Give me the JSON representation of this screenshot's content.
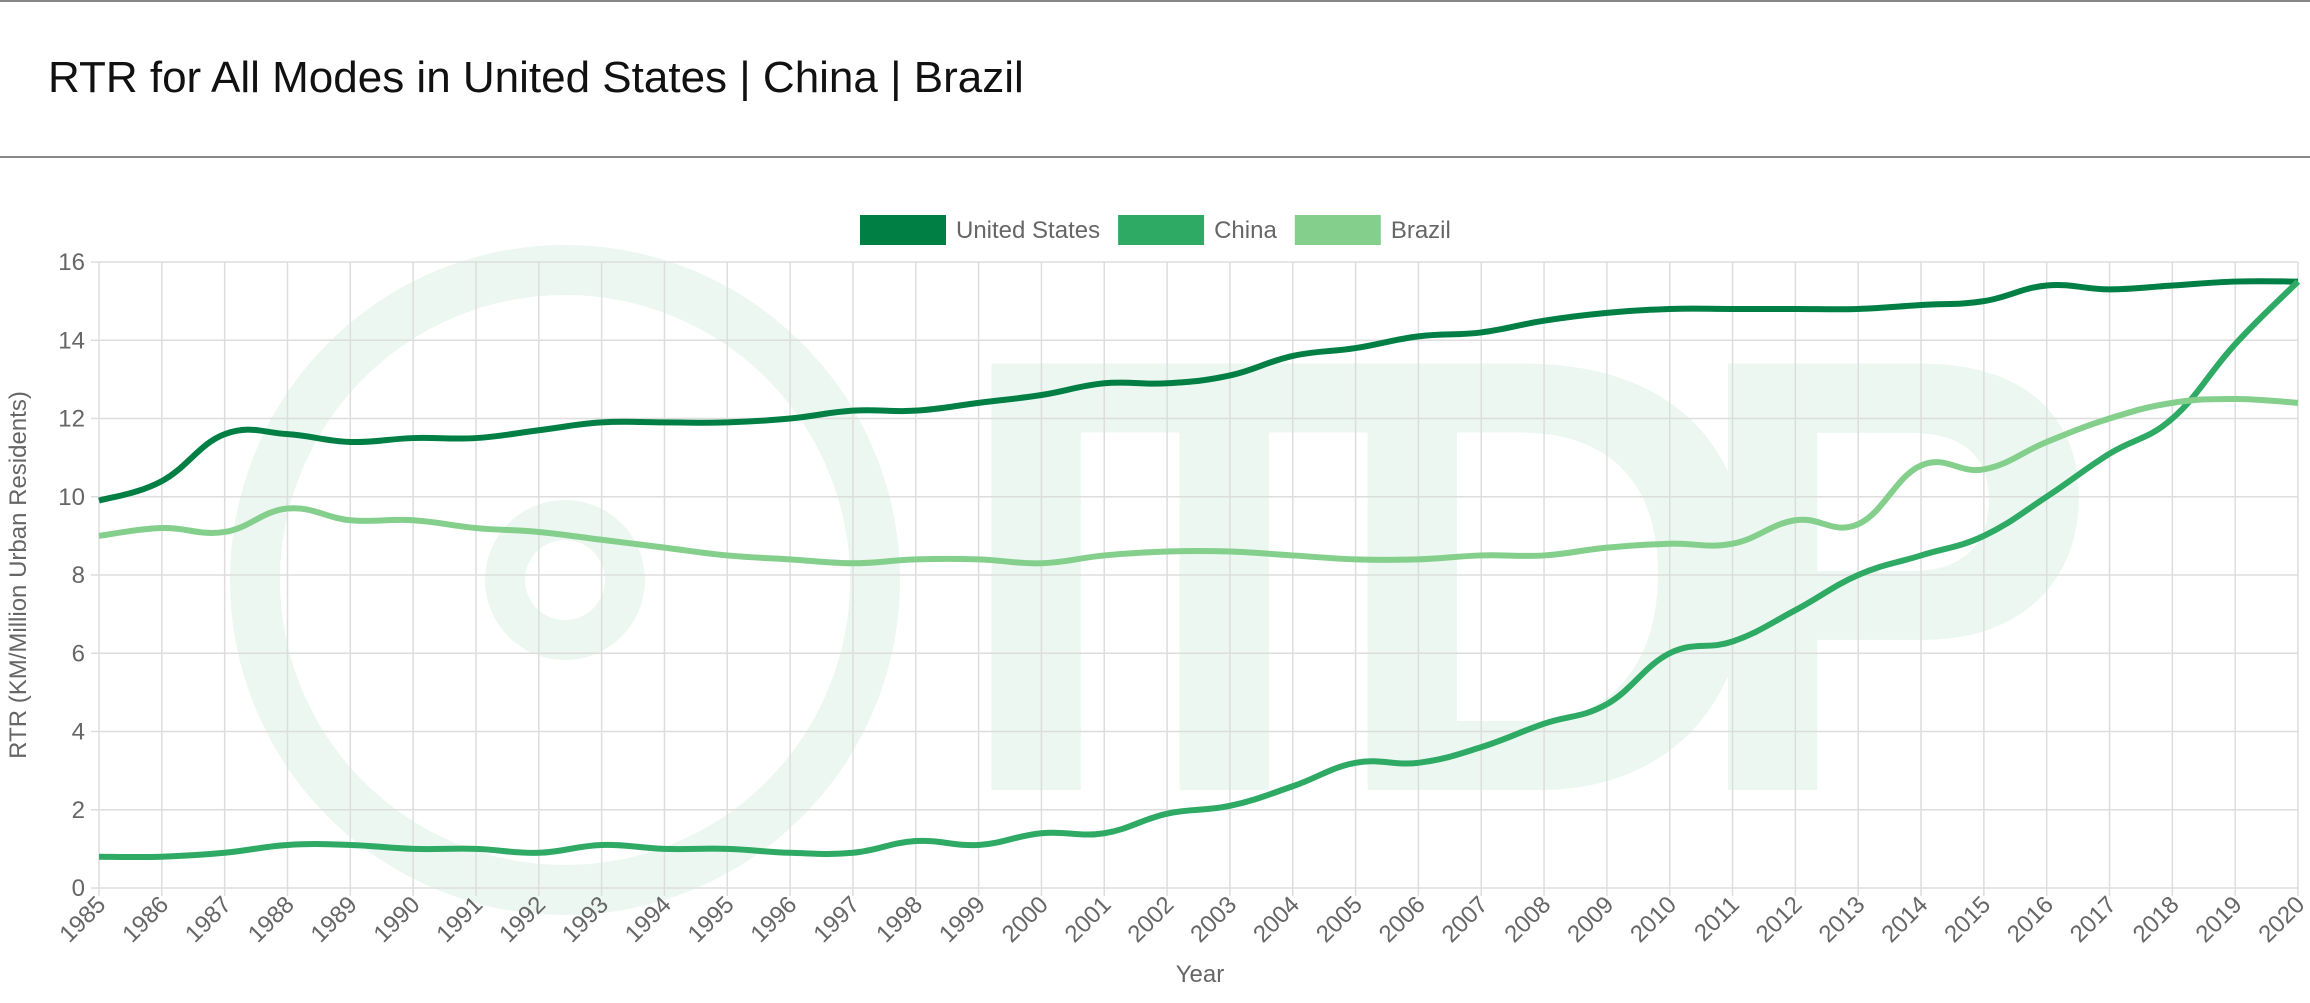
{
  "chart_data": {
    "type": "line",
    "title": "RTR for All Modes in United States | China | Brazil",
    "x_label": "Year",
    "y_label": "RTR (KM/Million Urban Residents)",
    "categories": [
      "1985",
      "1986",
      "1987",
      "1988",
      "1989",
      "1990",
      "1991",
      "1992",
      "1993",
      "1994",
      "1995",
      "1996",
      "1997",
      "1998",
      "1999",
      "2000",
      "2001",
      "2002",
      "2003",
      "2004",
      "2005",
      "2006",
      "2007",
      "2008",
      "2009",
      "2010",
      "2011",
      "2012",
      "2013",
      "2014",
      "2015",
      "2016",
      "2017",
      "2018",
      "2019",
      "2020"
    ],
    "series": [
      {
        "name": "United States",
        "color": "#007f45",
        "values": [
          9.9,
          10.4,
          11.6,
          11.6,
          11.4,
          11.5,
          11.5,
          11.7,
          11.9,
          11.9,
          11.9,
          12.0,
          12.2,
          12.2,
          12.4,
          12.6,
          12.9,
          12.9,
          13.1,
          13.6,
          13.8,
          14.1,
          14.2,
          14.5,
          14.7,
          14.8,
          14.8,
          14.8,
          14.8,
          14.9,
          15.0,
          15.4,
          15.3,
          15.4,
          15.5,
          15.5
        ]
      },
      {
        "name": "China",
        "color": "#2eaa64",
        "values": [
          0.8,
          0.8,
          0.9,
          1.1,
          1.1,
          1.0,
          1.0,
          0.9,
          1.1,
          1.0,
          1.0,
          0.9,
          0.9,
          1.2,
          1.1,
          1.4,
          1.4,
          1.9,
          2.1,
          2.6,
          3.2,
          3.2,
          3.6,
          4.2,
          4.7,
          6.0,
          6.3,
          7.1,
          8.0,
          8.5,
          9.0,
          10.0,
          11.1,
          12.0,
          13.9,
          15.5
        ]
      },
      {
        "name": "Brazil",
        "color": "#84cf8c",
        "values": [
          9.0,
          9.2,
          9.1,
          9.7,
          9.4,
          9.4,
          9.2,
          9.1,
          8.9,
          8.7,
          8.5,
          8.4,
          8.3,
          8.4,
          8.4,
          8.3,
          8.5,
          8.6,
          8.6,
          8.5,
          8.4,
          8.4,
          8.5,
          8.5,
          8.7,
          8.8,
          8.8,
          9.4,
          9.3,
          10.8,
          10.7,
          11.4,
          12.0,
          12.4,
          12.5,
          12.4
        ]
      }
    ],
    "ylim": [
      0,
      16
    ],
    "yticks": [
      0,
      2,
      4,
      6,
      8,
      10,
      12,
      14,
      16
    ],
    "grid": true,
    "legend": "top"
  }
}
